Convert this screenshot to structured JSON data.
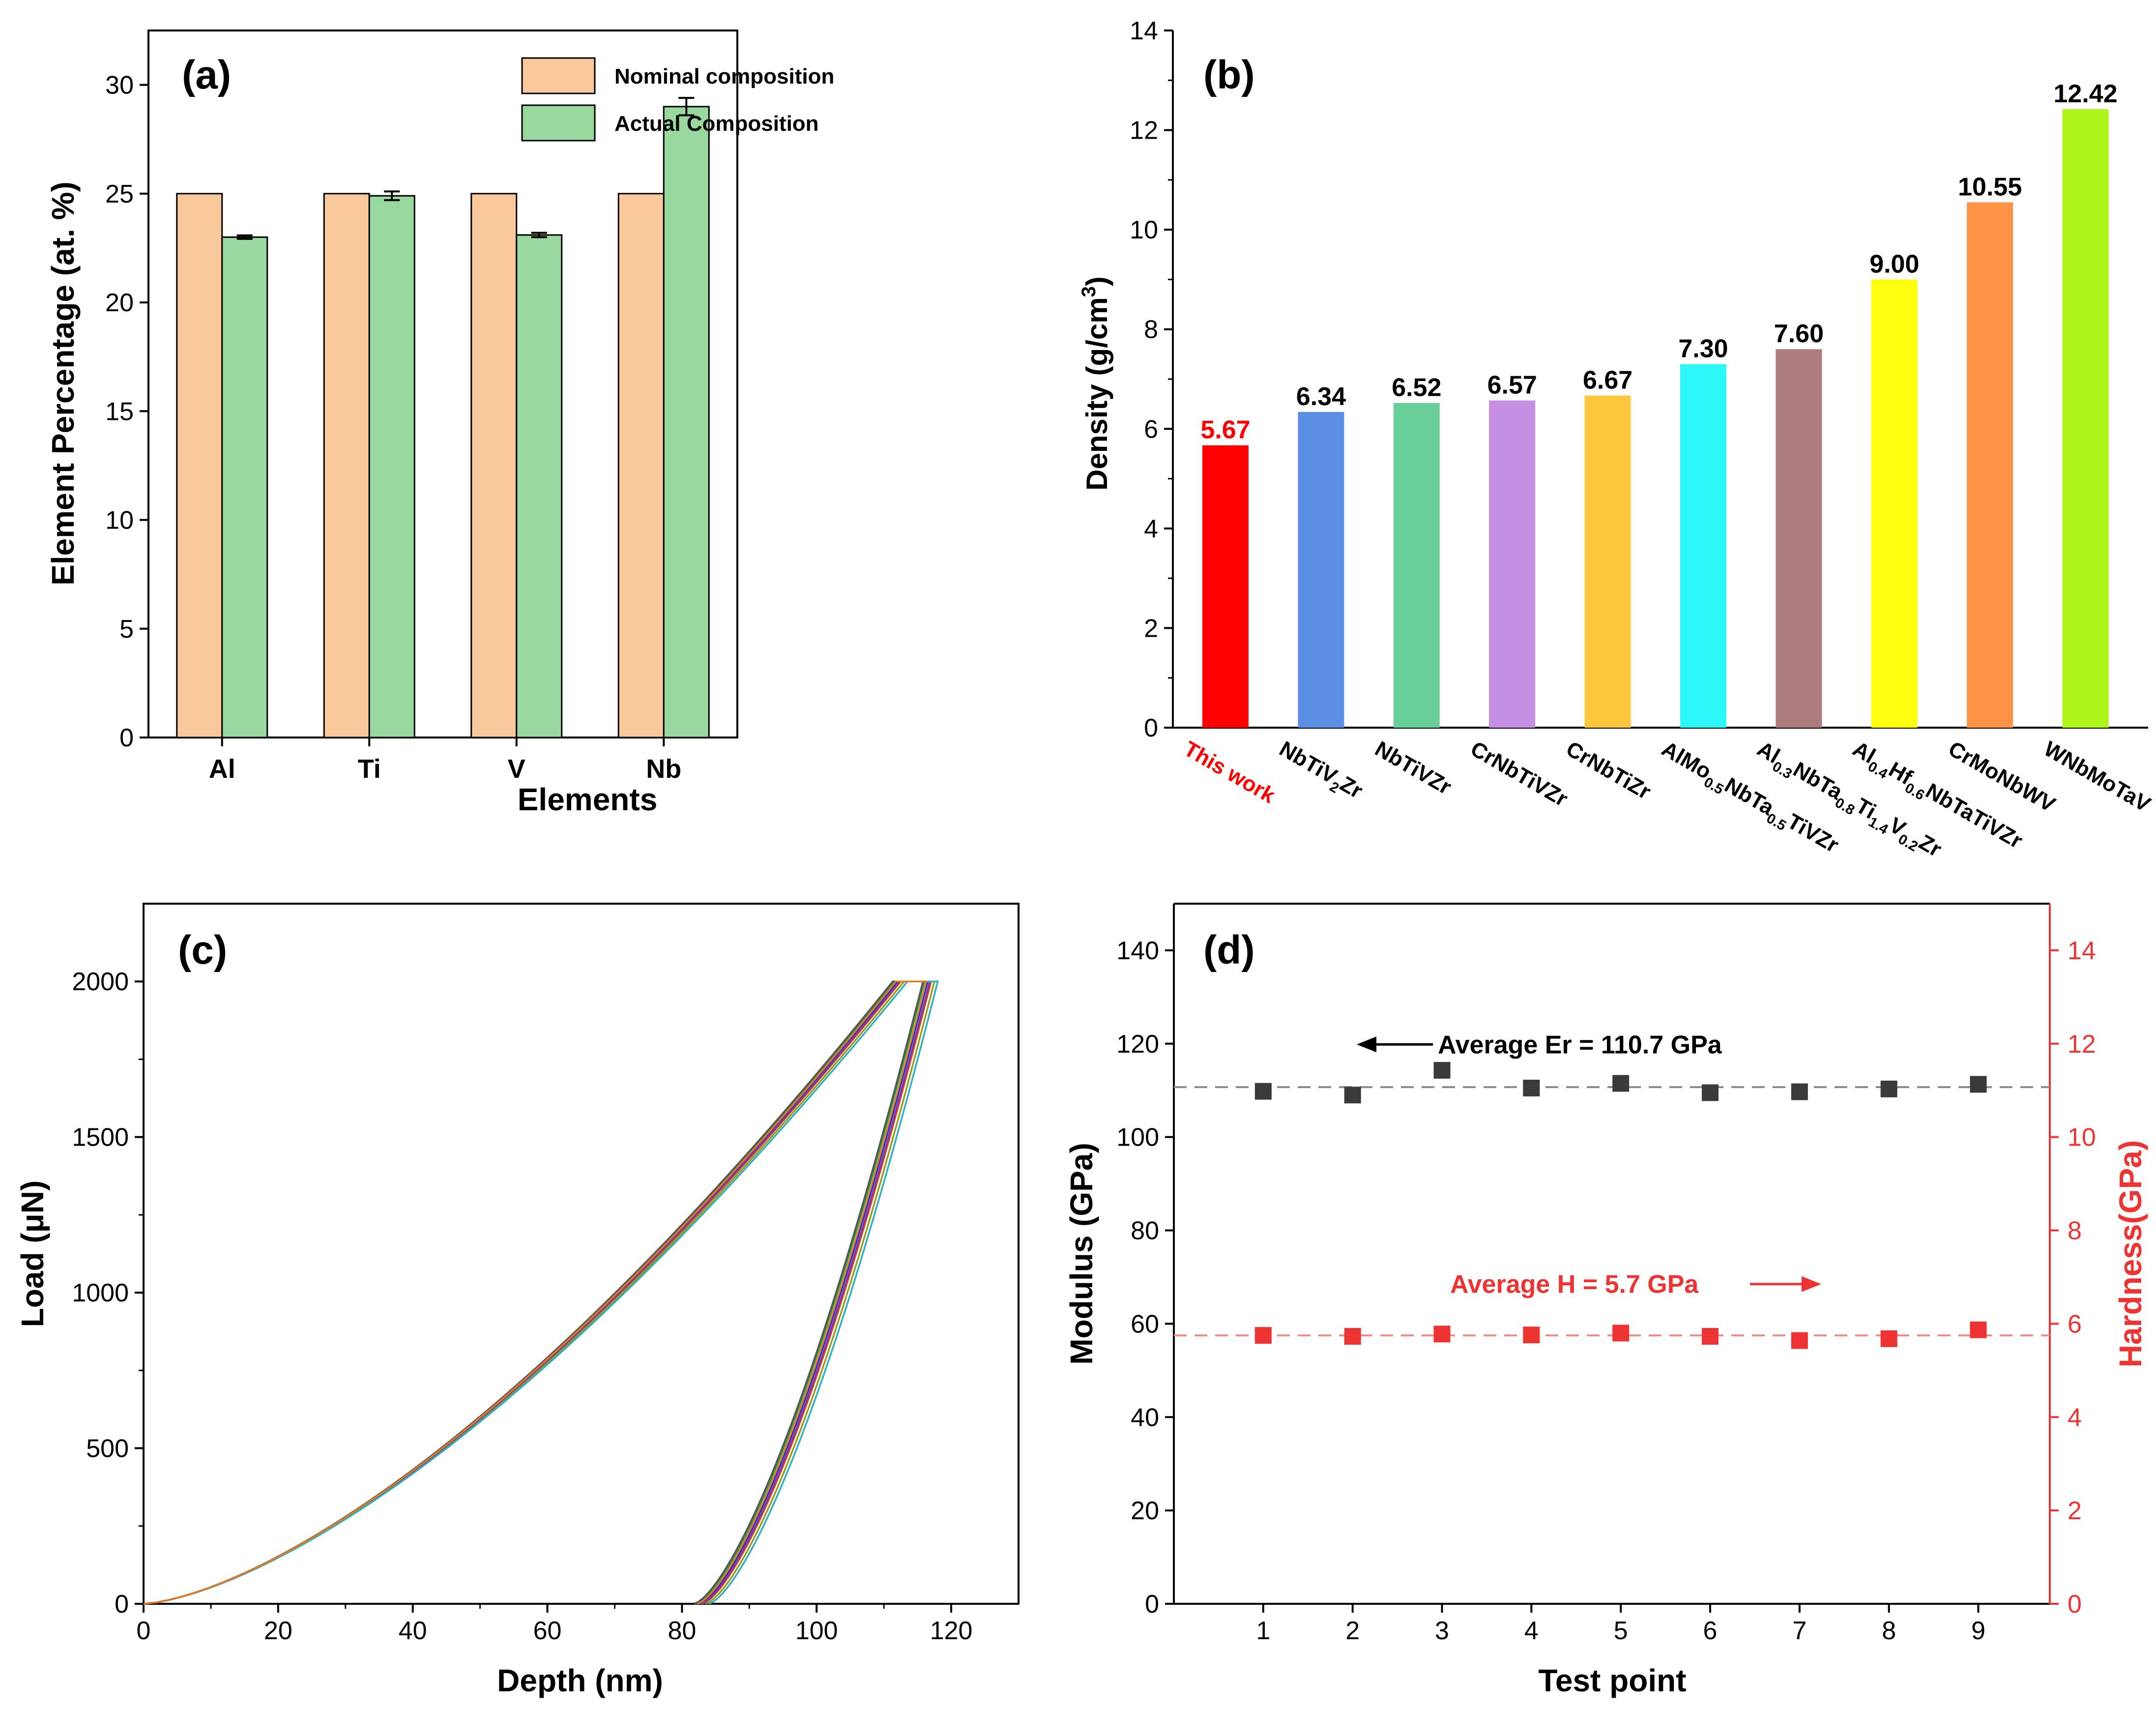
{
  "chart_data": [
    {
      "panel": "(a)",
      "type": "bar",
      "categories": [
        "Al",
        "Ti",
        "V",
        "Nb"
      ],
      "series": [
        {
          "name": "Nominal composition",
          "color": "#f9c89b",
          "values": [
            25,
            25,
            25,
            25
          ]
        },
        {
          "name": "Actual Composition",
          "color": "#99d89f",
          "values": [
            23.0,
            24.9,
            23.1,
            29.0
          ],
          "errors": [
            0.08,
            0.2,
            0.1,
            0.4
          ]
        }
      ],
      "xlabel": "Elements",
      "ylabel": "Element Percentage (at. %)",
      "ylim": [
        0,
        32.5
      ],
      "yticks": [
        0,
        5,
        10,
        15,
        20,
        25,
        30
      ],
      "legend": "top-right"
    },
    {
      "panel": "(b)",
      "type": "bar",
      "ylabel_main": "Density (g/cm",
      "ylabel_sup": "3",
      "ylabel_end": ")",
      "ylim": [
        0,
        14
      ],
      "yticks": [
        0,
        2,
        4,
        6,
        8,
        10,
        12,
        14
      ],
      "categories": [
        {
          "parts": [
            [
              "This work",
              ""
            ]
          ],
          "color": "#ff0000",
          "label_color": "#ff0000"
        },
        {
          "parts": [
            [
              "NbTiV",
              ""
            ],
            [
              "2",
              "sub"
            ],
            [
              "Zr",
              ""
            ]
          ],
          "color": "#5b8fe3"
        },
        {
          "parts": [
            [
              "NbTiVZr",
              ""
            ]
          ],
          "color": "#68cf98"
        },
        {
          "parts": [
            [
              "CrNbTiVZr",
              ""
            ]
          ],
          "color": "#c58fe4"
        },
        {
          "parts": [
            [
              "CrNbTiZr",
              ""
            ]
          ],
          "color": "#fec73c"
        },
        {
          "parts": [
            [
              "AlMo",
              ""
            ],
            [
              "0.5",
              "sub"
            ],
            [
              "NbTa",
              ""
            ],
            [
              "0.5",
              "sub"
            ],
            [
              "TiVZr",
              ""
            ]
          ],
          "color": "#2ef7f9"
        },
        {
          "parts": [
            [
              "Al",
              ""
            ],
            [
              "0.3",
              "sub"
            ],
            [
              "NbTa",
              ""
            ],
            [
              "0.8",
              "sub"
            ],
            [
              "Ti",
              ""
            ],
            [
              "1.4",
              "sub"
            ],
            [
              "V",
              ""
            ],
            [
              "0.2",
              "sub"
            ],
            [
              "Zr",
              ""
            ]
          ],
          "color": "#ad7d7d"
        },
        {
          "parts": [
            [
              "Al",
              ""
            ],
            [
              "0.4",
              "sub"
            ],
            [
              "Hf",
              ""
            ],
            [
              "0.6",
              "sub"
            ],
            [
              "NbTaTiVZr",
              ""
            ]
          ],
          "color": "#ffff10"
        },
        {
          "parts": [
            [
              "CrMoNbWV",
              ""
            ]
          ],
          "color": "#ff9447"
        },
        {
          "parts": [
            [
              "WNbMoTaV",
              ""
            ]
          ],
          "color": "#aef51c"
        }
      ],
      "values": [
        5.67,
        6.34,
        6.52,
        6.57,
        6.67,
        7.3,
        7.6,
        9.0,
        10.55,
        12.42
      ],
      "value_labels": [
        "5.67",
        "6.34",
        "6.52",
        "6.57",
        "6.67",
        "7.30",
        "7.60",
        "9.00",
        "10.55",
        "12.42"
      ]
    },
    {
      "panel": "(c)",
      "type": "line",
      "xlabel": "Depth (nm)",
      "ylabel": "Load (μN)",
      "xlim": [
        0,
        130
      ],
      "ylim": [
        0,
        2250
      ],
      "xticks": [
        0,
        20,
        40,
        60,
        80,
        100,
        120
      ],
      "yticks": [
        0,
        500,
        1000,
        1500,
        2000
      ],
      "peak_load": 2000,
      "curves": [
        {
          "color": "#1f1fd8",
          "hmax": 116.5,
          "hf": 82.5
        },
        {
          "color": "#d83a2a",
          "hmax": 117.0,
          "hf": 83.0
        },
        {
          "color": "#2a9a3a",
          "hmax": 116.0,
          "hf": 82.0
        },
        {
          "color": "#9a9a1a",
          "hmax": 117.5,
          "hf": 83.5
        },
        {
          "color": "#7a3aa0",
          "hmax": 116.8,
          "hf": 82.8
        },
        {
          "color": "#2ab0c0",
          "hmax": 118.0,
          "hf": 84.0
        },
        {
          "color": "#555555",
          "hmax": 115.8,
          "hf": 81.8
        },
        {
          "color": "#e07a20",
          "hmax": 116.3,
          "hf": 82.3
        }
      ]
    },
    {
      "panel": "(d)",
      "type": "scatter",
      "xlabel": "Test point",
      "ylabel_left": "Modulus (GPa)",
      "ylabel_right": "Hardness(GPa)",
      "x": [
        1,
        2,
        3,
        4,
        5,
        6,
        7,
        8,
        9
      ],
      "xlim": [
        0,
        9.8
      ],
      "ylim_left": [
        0,
        150
      ],
      "ylim_right": [
        0,
        15
      ],
      "yticks_left": [
        0,
        20,
        40,
        60,
        80,
        100,
        120,
        140
      ],
      "yticks_right": [
        0,
        2,
        4,
        6,
        8,
        10,
        12,
        14
      ],
      "series": [
        {
          "name": "Modulus",
          "axis": "left",
          "color": "#3a3a3a",
          "values": [
            109.8,
            109.0,
            114.3,
            110.5,
            111.5,
            109.5,
            109.7,
            110.3,
            111.3
          ],
          "average": 110.7
        },
        {
          "name": "Hardness",
          "axis": "right",
          "color": "#ee3333",
          "values": [
            5.75,
            5.73,
            5.78,
            5.76,
            5.8,
            5.73,
            5.64,
            5.68,
            5.87
          ],
          "average": 5.75
        }
      ],
      "annotations": {
        "er": "Average Er = 110.7 GPa",
        "h": "Average H = 5.7 GPa"
      }
    }
  ]
}
